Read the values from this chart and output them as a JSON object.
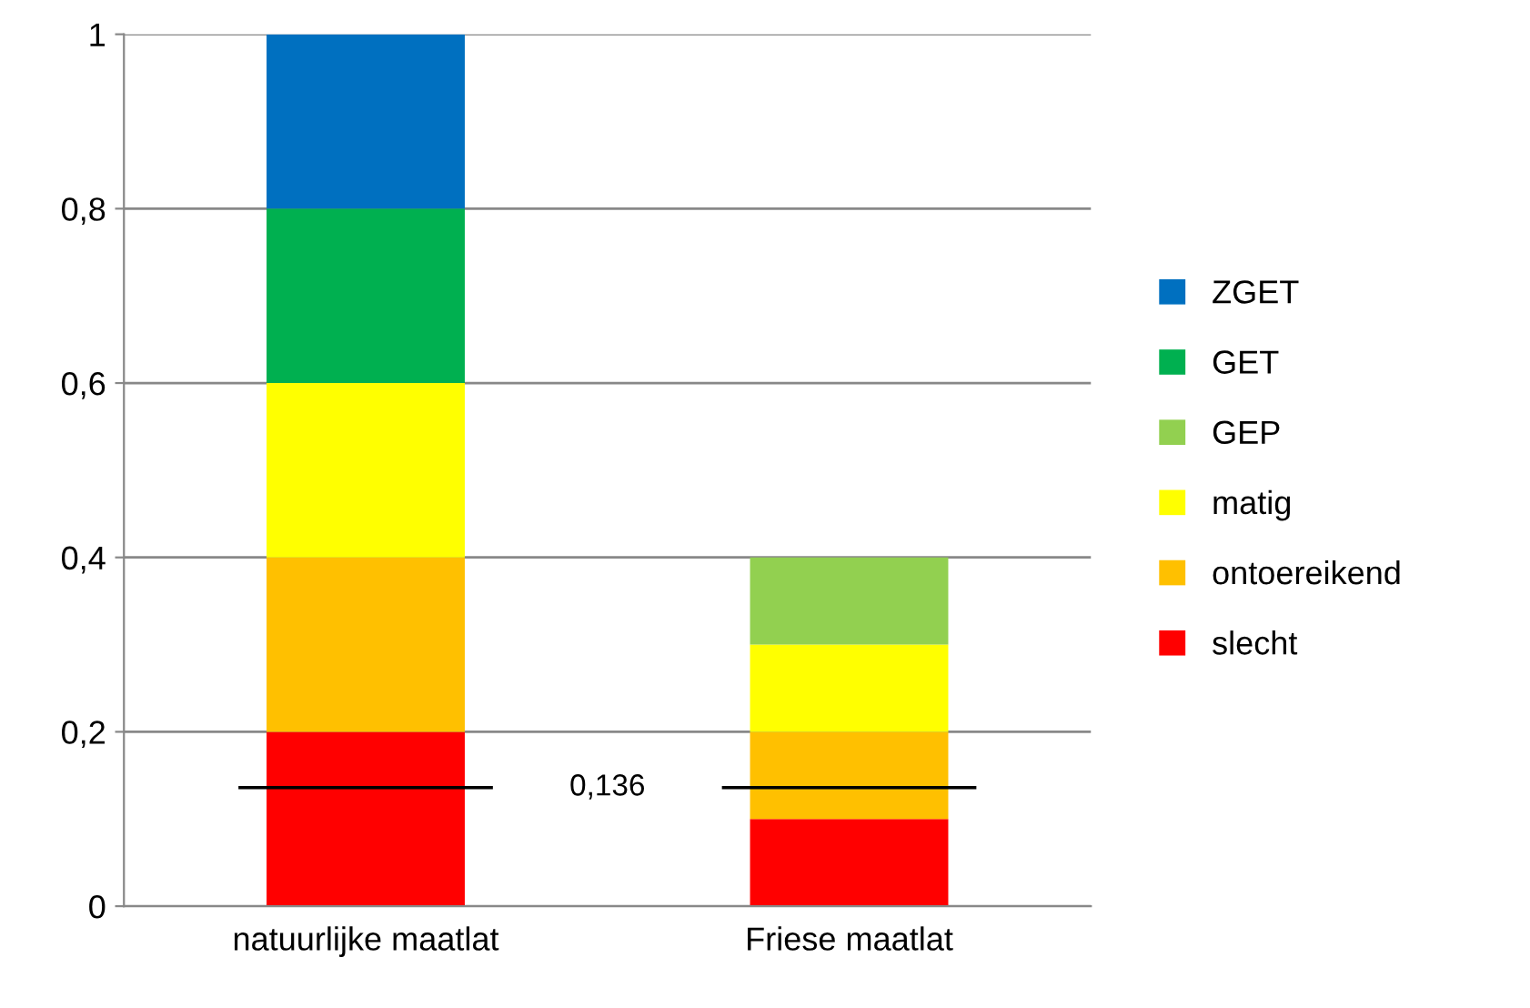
{
  "chart_data": {
    "type": "bar",
    "stacked": true,
    "categories": [
      "natuurlijke maatlat",
      "Friese maatlat"
    ],
    "series": [
      {
        "name": "slecht",
        "color": "#ff0000",
        "values": [
          0.2,
          0.1
        ]
      },
      {
        "name": "ontoereikend",
        "color": "#ffc000",
        "values": [
          0.2,
          0.1
        ]
      },
      {
        "name": "matig",
        "color": "#ffff00",
        "values": [
          0.2,
          0.1
        ]
      },
      {
        "name": "GEP",
        "color": "#92d050",
        "values": [
          null,
          0.1
        ]
      },
      {
        "name": "GET",
        "color": "#00b050",
        "values": [
          0.2,
          null
        ]
      },
      {
        "name": "ZGET",
        "color": "#0070c0",
        "values": [
          0.2,
          null
        ]
      }
    ],
    "ylim": [
      0,
      1
    ],
    "yticks": [
      0,
      {
        "value": 0.2,
        "label": "0,2"
      },
      {
        "value": 0.4,
        "label": "0,4"
      },
      {
        "value": 0.6,
        "label": "0,6"
      },
      {
        "value": 0.8,
        "label": "0,8"
      },
      1
    ],
    "grid": "y",
    "legend": "right",
    "ref_lines": [
      {
        "axis": "y",
        "value": 0.136,
        "label": "0,136",
        "color": "#000000"
      }
    ]
  }
}
